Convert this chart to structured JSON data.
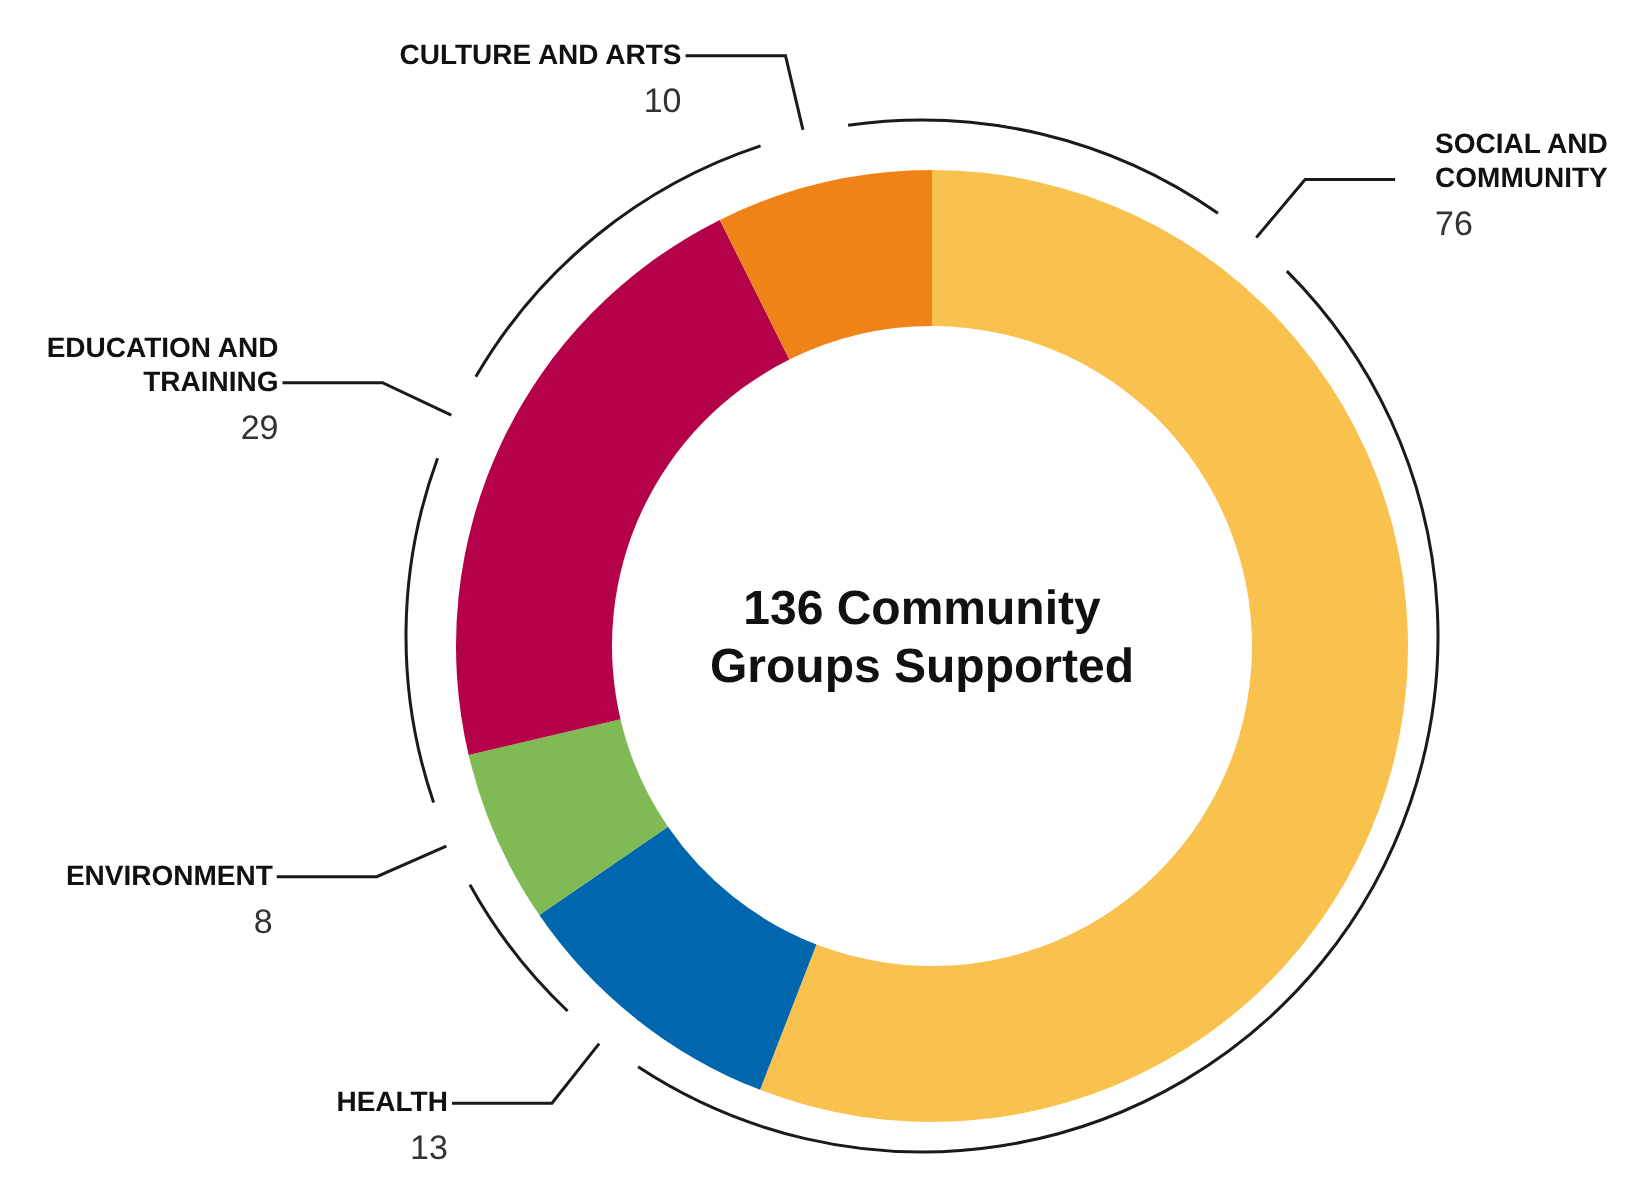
{
  "chart_data": {
    "type": "donut",
    "title": "136 Community Groups Supported",
    "categories": [
      "SOCIAL AND COMMUNITY",
      "HEALTH",
      "ENVIRONMENT",
      "EDUCATION AND TRAINING",
      "CULTURE AND ARTS"
    ],
    "values": [
      76,
      13,
      8,
      29,
      10
    ],
    "colors": [
      "#f9c24f",
      "#0066ad",
      "#7fba55",
      "#b5004a",
      "#ef8318"
    ],
    "data_labels": true,
    "legend": false
  }
}
